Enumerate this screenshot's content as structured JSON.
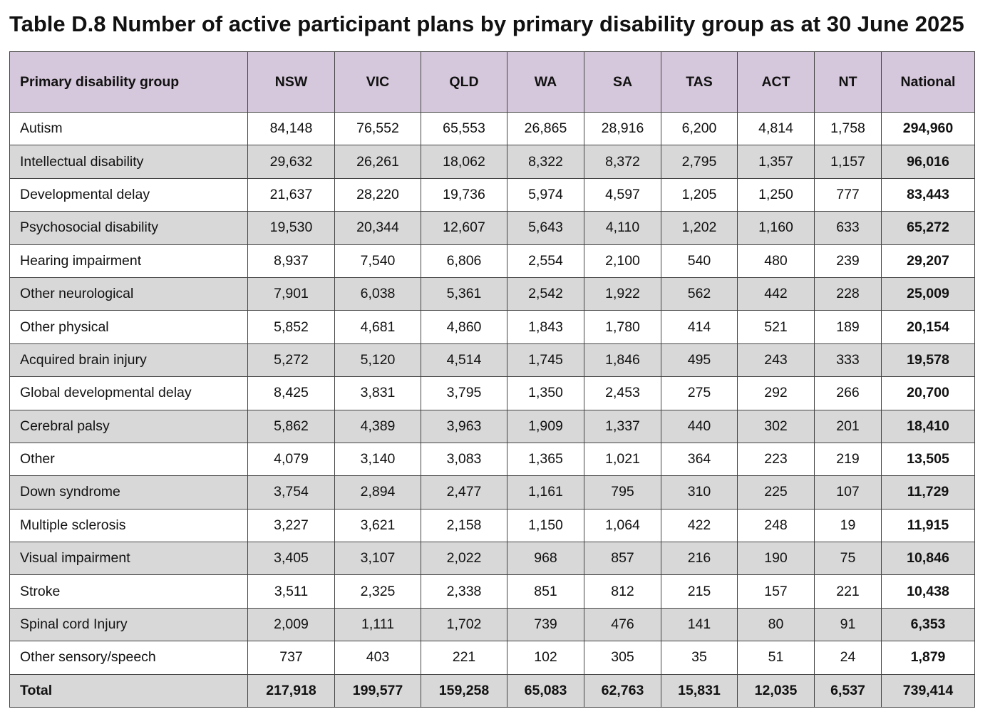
{
  "title": "Table D.8 Number of active participant plans by primary disability group as at 30 June 2025",
  "headers": [
    "Primary disability group",
    "NSW",
    "VIC",
    "QLD",
    "WA",
    "SA",
    "TAS",
    "ACT",
    "NT",
    "National"
  ],
  "rows": [
    [
      "Autism",
      "84,148",
      "76,552",
      "65,553",
      "26,865",
      "28,916",
      "6,200",
      "4,814",
      "1,758",
      "294,960"
    ],
    [
      "Intellectual disability",
      "29,632",
      "26,261",
      "18,062",
      "8,322",
      "8,372",
      "2,795",
      "1,357",
      "1,157",
      "96,016"
    ],
    [
      "Developmental delay",
      "21,637",
      "28,220",
      "19,736",
      "5,974",
      "4,597",
      "1,205",
      "1,250",
      "777",
      "83,443"
    ],
    [
      "Psychosocial disability",
      "19,530",
      "20,344",
      "12,607",
      "5,643",
      "4,110",
      "1,202",
      "1,160",
      "633",
      "65,272"
    ],
    [
      "Hearing impairment",
      "8,937",
      "7,540",
      "6,806",
      "2,554",
      "2,100",
      "540",
      "480",
      "239",
      "29,207"
    ],
    [
      "Other neurological",
      "7,901",
      "6,038",
      "5,361",
      "2,542",
      "1,922",
      "562",
      "442",
      "228",
      "25,009"
    ],
    [
      "Other physical",
      "5,852",
      "4,681",
      "4,860",
      "1,843",
      "1,780",
      "414",
      "521",
      "189",
      "20,154"
    ],
    [
      "Acquired brain injury",
      "5,272",
      "5,120",
      "4,514",
      "1,745",
      "1,846",
      "495",
      "243",
      "333",
      "19,578"
    ],
    [
      "Global developmental delay",
      "8,425",
      "3,831",
      "3,795",
      "1,350",
      "2,453",
      "275",
      "292",
      "266",
      "20,700"
    ],
    [
      "Cerebral palsy",
      "5,862",
      "4,389",
      "3,963",
      "1,909",
      "1,337",
      "440",
      "302",
      "201",
      "18,410"
    ],
    [
      "Other",
      "4,079",
      "3,140",
      "3,083",
      "1,365",
      "1,021",
      "364",
      "223",
      "219",
      "13,505"
    ],
    [
      "Down syndrome",
      "3,754",
      "2,894",
      "2,477",
      "1,161",
      "795",
      "310",
      "225",
      "107",
      "11,729"
    ],
    [
      "Multiple sclerosis",
      "3,227",
      "3,621",
      "2,158",
      "1,150",
      "1,064",
      "422",
      "248",
      "19",
      "11,915"
    ],
    [
      "Visual impairment",
      "3,405",
      "3,107",
      "2,022",
      "968",
      "857",
      "216",
      "190",
      "75",
      "10,846"
    ],
    [
      "Stroke",
      "3,511",
      "2,325",
      "2,338",
      "851",
      "812",
      "215",
      "157",
      "221",
      "10,438"
    ],
    [
      "Spinal cord Injury",
      "2,009",
      "1,111",
      "1,702",
      "739",
      "476",
      "141",
      "80",
      "91",
      "6,353"
    ],
    [
      "Other sensory/speech",
      "737",
      "403",
      "221",
      "102",
      "305",
      "35",
      "51",
      "24",
      "1,879"
    ]
  ],
  "total": [
    "Total",
    "217,918",
    "199,577",
    "159,258",
    "65,083",
    "62,763",
    "15,831",
    "12,035",
    "6,537",
    "739,414"
  ],
  "colors": {
    "header_background": "#d6c8dc",
    "stripe_background": "#d8d8d8",
    "border": "#444444"
  }
}
